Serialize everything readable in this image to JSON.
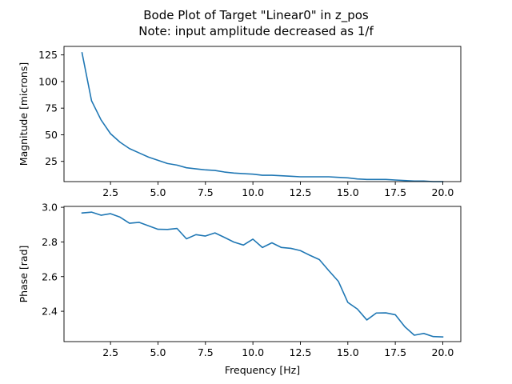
{
  "figure": {
    "title_line1": "Bode Plot of Target \"Linear0\" in z_pos",
    "title_line2": "Note: input amplitude decreased as 1/f"
  },
  "chart_data": [
    {
      "type": "line",
      "ylabel": "Magnitude [microns]",
      "xlabel": "",
      "xlim": [
        0.05,
        20.95
      ],
      "ylim": [
        6.0,
        133.0
      ],
      "xticks": [
        2.5,
        5.0,
        7.5,
        10.0,
        12.5,
        15.0,
        17.5,
        20.0
      ],
      "xtick_labels": [
        "2.5",
        "5.0",
        "7.5",
        "10.0",
        "12.5",
        "15.0",
        "17.5",
        "20.0"
      ],
      "yticks": [
        25,
        50,
        75,
        100,
        125
      ],
      "ytick_labels": [
        "25",
        "50",
        "75",
        "100",
        "125"
      ],
      "color": "#1f77b4",
      "x": [
        1.0,
        1.5,
        2.0,
        2.5,
        3.0,
        3.5,
        4.0,
        4.5,
        5.0,
        5.5,
        6.0,
        6.5,
        7.0,
        7.5,
        8.0,
        8.5,
        9.0,
        9.5,
        10.0,
        10.5,
        11.0,
        11.5,
        12.0,
        12.5,
        13.0,
        13.5,
        14.0,
        14.5,
        15.0,
        15.5,
        16.0,
        16.5,
        17.0,
        17.5,
        18.0,
        18.5,
        19.0,
        19.5,
        20.0
      ],
      "y": [
        127.0,
        82.0,
        64.0,
        51.0,
        43.0,
        37.0,
        33.0,
        29.0,
        26.0,
        23.0,
        21.5,
        19.0,
        18.0,
        17.0,
        16.5,
        15.0,
        14.0,
        13.5,
        13.0,
        12.0,
        12.0,
        11.5,
        11.0,
        10.5,
        10.5,
        10.5,
        10.5,
        10.0,
        9.5,
        8.5,
        8.0,
        8.0,
        8.0,
        7.5,
        7.0,
        6.5,
        6.5,
        6.0,
        6.0
      ]
    },
    {
      "type": "line",
      "ylabel": "Phase [rad]",
      "xlabel": "Frequency [Hz]",
      "xlim": [
        0.05,
        20.95
      ],
      "ylim": [
        2.225,
        3.005
      ],
      "xticks": [
        2.5,
        5.0,
        7.5,
        10.0,
        12.5,
        15.0,
        17.5,
        20.0
      ],
      "xtick_labels": [
        "2.5",
        "5.0",
        "7.5",
        "10.0",
        "12.5",
        "15.0",
        "17.5",
        "20.0"
      ],
      "yticks": [
        2.4,
        2.6,
        2.8,
        3.0
      ],
      "ytick_labels": [
        "2.4",
        "2.6",
        "2.8",
        "3.0"
      ],
      "color": "#1f77b4",
      "x": [
        1.0,
        1.5,
        2.0,
        2.5,
        3.0,
        3.5,
        4.0,
        4.5,
        5.0,
        5.5,
        6.0,
        6.5,
        7.0,
        7.5,
        8.0,
        8.5,
        9.0,
        9.5,
        10.0,
        10.5,
        11.0,
        11.5,
        12.0,
        12.5,
        13.0,
        13.5,
        14.0,
        14.5,
        15.0,
        15.5,
        16.0,
        16.5,
        17.0,
        17.5,
        18.0,
        18.5,
        19.0,
        19.5,
        20.0
      ],
      "y": [
        2.967,
        2.972,
        2.954,
        2.963,
        2.943,
        2.908,
        2.913,
        2.893,
        2.873,
        2.872,
        2.878,
        2.818,
        2.842,
        2.834,
        2.852,
        2.826,
        2.799,
        2.782,
        2.816,
        2.768,
        2.795,
        2.768,
        2.763,
        2.75,
        2.723,
        2.698,
        2.634,
        2.573,
        2.451,
        2.413,
        2.35,
        2.39,
        2.391,
        2.38,
        2.311,
        2.262,
        2.272,
        2.254,
        2.252
      ]
    }
  ]
}
